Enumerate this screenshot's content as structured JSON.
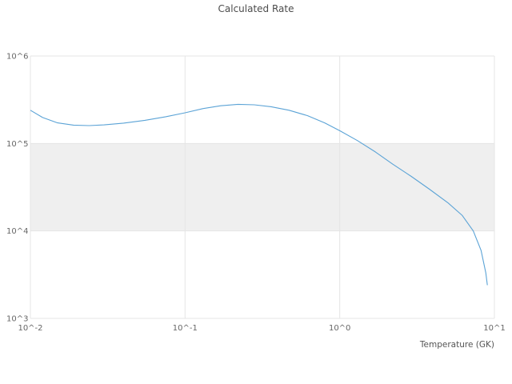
{
  "chart_data": {
    "type": "line",
    "title": "Calculated Rate",
    "xlabel": "Temperature (GK)",
    "ylabel": "",
    "x_scale": "log",
    "y_scale": "log",
    "xlim": [
      0.01,
      10
    ],
    "ylim": [
      1000,
      1000000
    ],
    "x_tick_values": [
      0.01,
      0.1,
      1,
      10
    ],
    "x_tick_labels": [
      "10^-2",
      "10^-1",
      "10^0",
      "10^1"
    ],
    "y_tick_values": [
      1000,
      10000,
      100000,
      1000000
    ],
    "y_tick_labels": [
      "10^3",
      "10^4",
      "10^5",
      "10^6"
    ],
    "grid": true,
    "legend": false,
    "grid_color": "#e5e5e5",
    "line_color": "#5ba3d6",
    "band": {
      "y_from": 10000,
      "y_to": 100000,
      "color": "#efefef"
    },
    "series": [
      {
        "x": [
          0.01,
          0.012,
          0.015,
          0.019,
          0.024,
          0.03,
          0.04,
          0.055,
          0.075,
          0.1,
          0.13,
          0.17,
          0.22,
          0.28,
          0.36,
          0.47,
          0.62,
          0.8,
          1.0,
          1.3,
          1.7,
          2.2,
          2.9,
          3.8,
          5.0,
          6.2,
          7.3,
          8.2,
          8.8,
          9.0
        ],
        "y": [
          240000,
          198000,
          172000,
          162000,
          160000,
          163000,
          171000,
          184000,
          202000,
          224000,
          250000,
          270000,
          280000,
          277000,
          263000,
          240000,
          208000,
          172000,
          140000,
          108000,
          80000,
          58000,
          42000,
          30000,
          21000,
          15000,
          10000,
          6000,
          3300,
          2400
        ]
      }
    ]
  }
}
